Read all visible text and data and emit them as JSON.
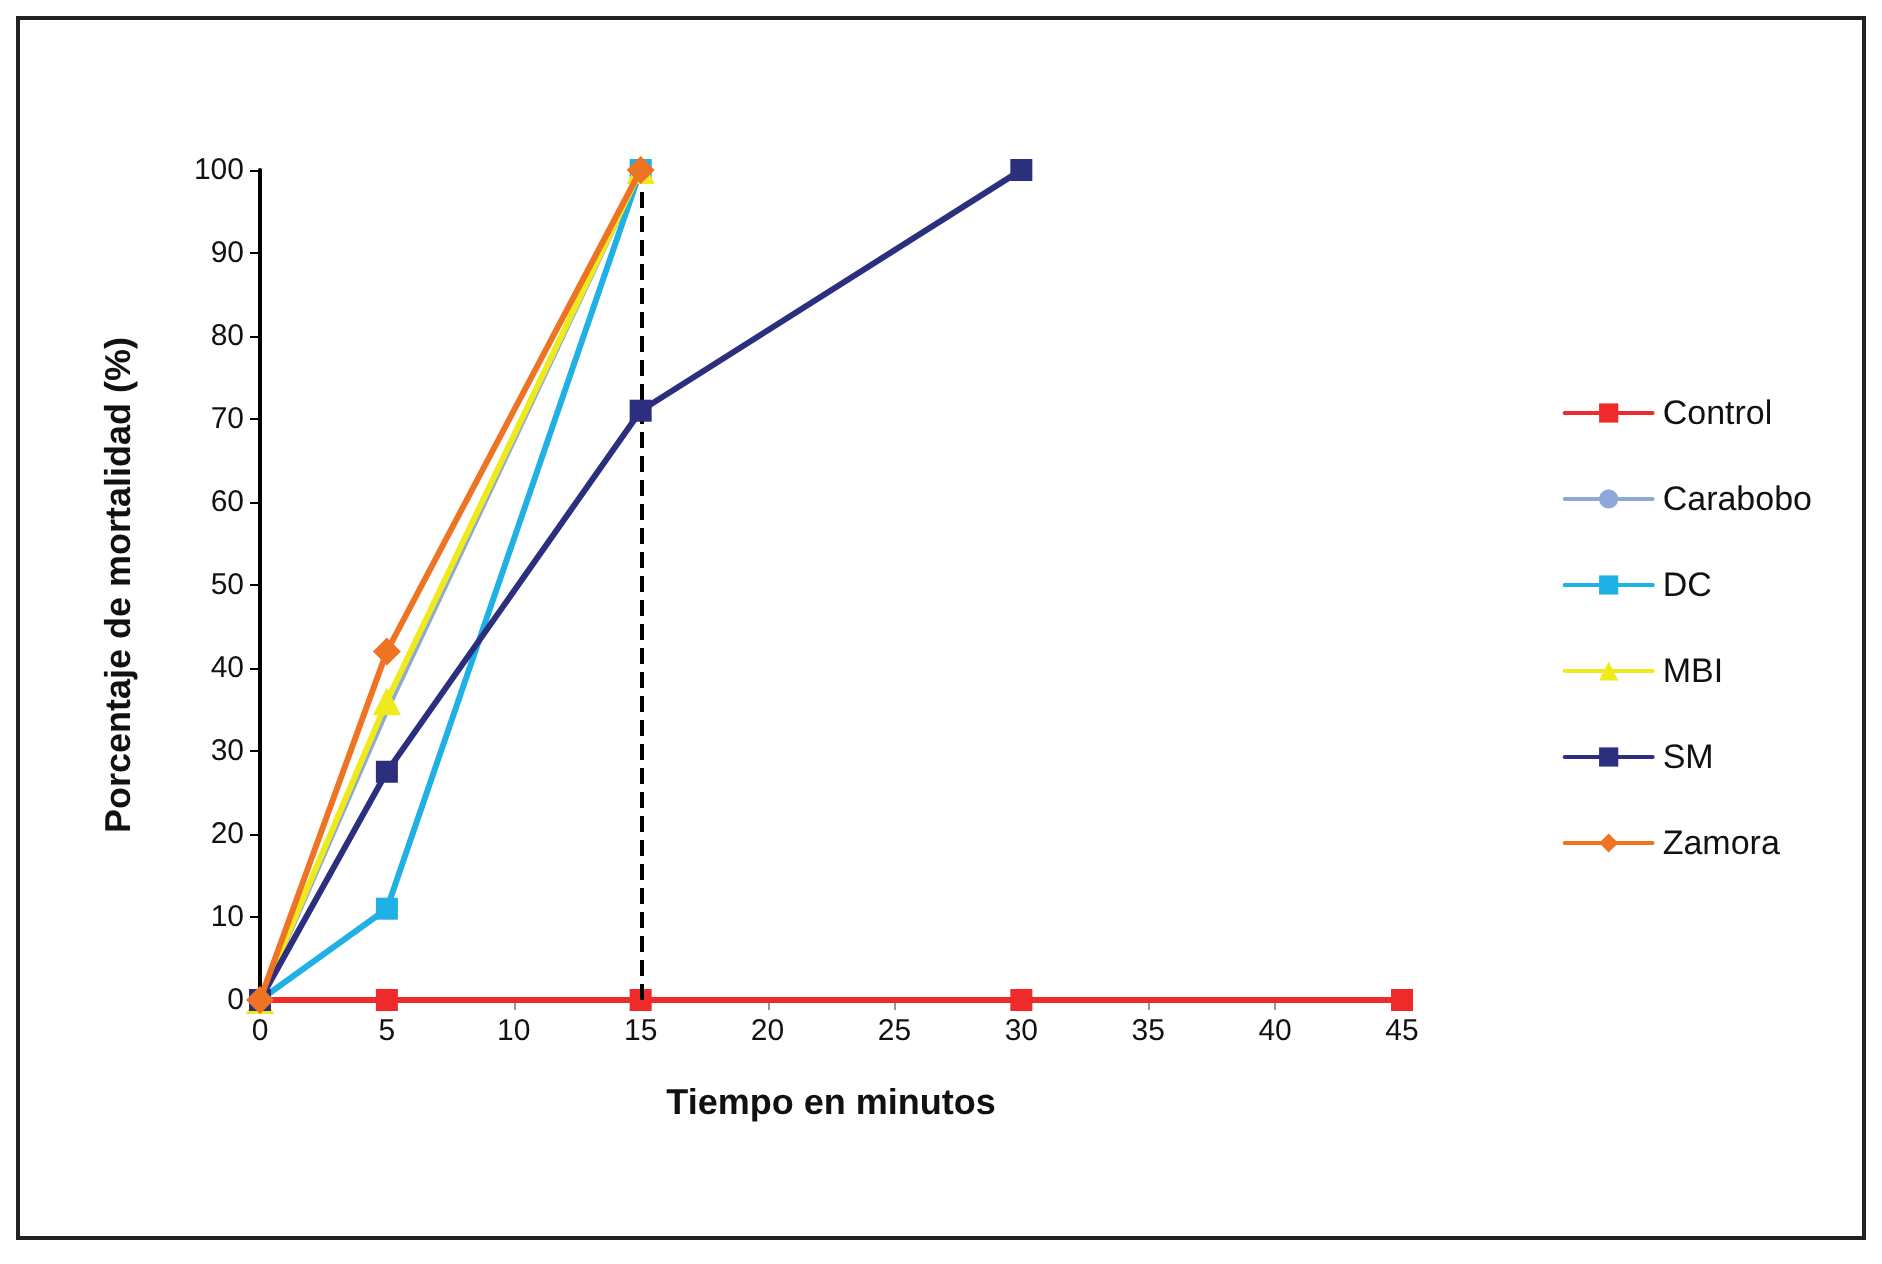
{
  "chart_data": {
    "type": "line",
    "xlabel": "Tiempo en minutos",
    "ylabel": "Porcentaje de mortalidad (%)",
    "xlim": [
      0,
      45
    ],
    "xticks": [
      0,
      5,
      10,
      15,
      20,
      25,
      30,
      35,
      40,
      45
    ],
    "ylim": [
      0,
      100
    ],
    "yticks": [
      0,
      10,
      20,
      30,
      40,
      50,
      60,
      70,
      80,
      90,
      100
    ],
    "grid": false,
    "legend": "right",
    "series": [
      {
        "name": "Control",
        "color": "#ee2a2a",
        "marker": "square",
        "x": [
          0,
          5,
          15,
          30,
          45
        ],
        "values": [
          0,
          0,
          0,
          0,
          0
        ]
      },
      {
        "name": "Carabobo",
        "color": "#8da9d8",
        "marker": "none",
        "x": [
          0,
          5,
          15
        ],
        "values": [
          0,
          35,
          100
        ]
      },
      {
        "name": "DC",
        "color": "#1fb0e6",
        "marker": "square",
        "x": [
          0,
          5,
          15
        ],
        "values": [
          0,
          11,
          100
        ]
      },
      {
        "name": "MBI",
        "color": "#eeea1c",
        "marker": "triangle",
        "x": [
          0,
          5,
          15
        ],
        "values": [
          0,
          36,
          100
        ]
      },
      {
        "name": "SM",
        "color": "#2b2f7e",
        "marker": "square",
        "x": [
          0,
          5,
          15,
          30
        ],
        "values": [
          0,
          27.5,
          71,
          100
        ]
      },
      {
        "name": "Zamora",
        "color": "#ee7424",
        "marker": "diamond",
        "x": [
          0,
          5,
          15
        ],
        "values": [
          0,
          42,
          100
        ]
      }
    ],
    "ref_lines": [
      {
        "axis": "x",
        "value": 15,
        "color": "#000000",
        "line_style": "dashed"
      }
    ]
  }
}
